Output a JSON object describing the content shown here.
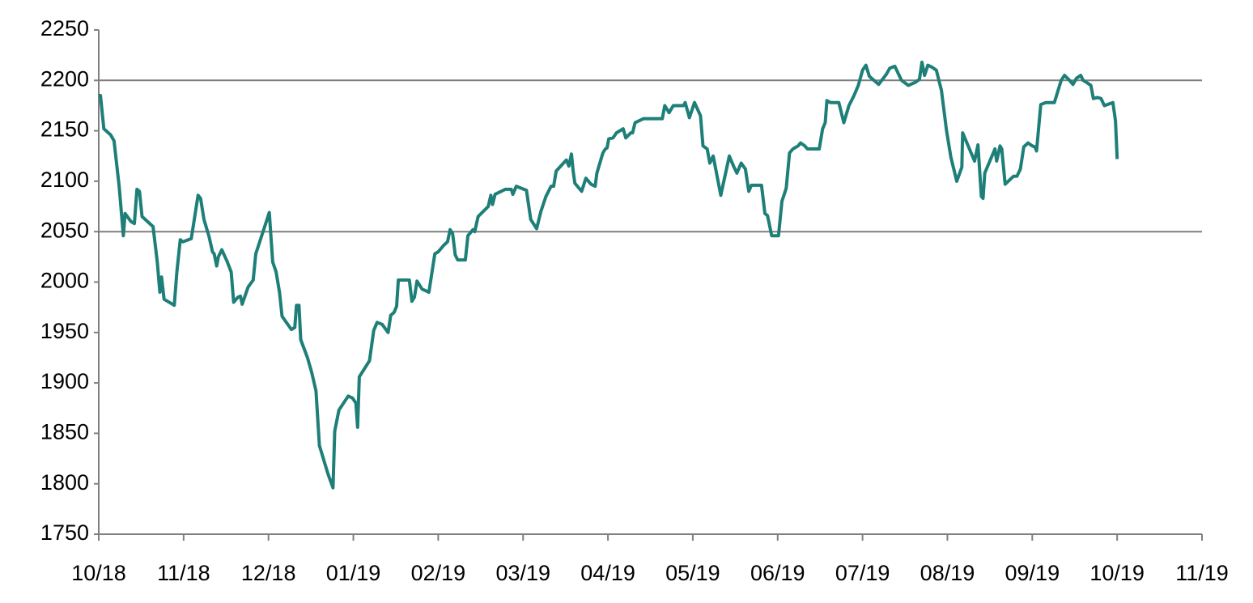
{
  "chart_data": {
    "type": "line",
    "x": [
      0,
      0.02,
      0.06,
      0.14,
      0.18,
      0.24,
      0.29,
      0.31,
      0.38,
      0.42,
      0.45,
      0.48,
      0.51,
      0.64,
      0.69,
      0.72,
      0.74,
      0.77,
      0.89,
      0.92,
      0.96,
      0.99,
      1.09,
      1.17,
      1.2,
      1.24,
      1.3,
      1.34,
      1.36,
      1.39,
      1.41,
      1.45,
      1.51,
      1.56,
      1.59,
      1.64,
      1.67,
      1.69,
      1.76,
      1.82,
      1.85,
      2.01,
      2.05,
      2.09,
      2.13,
      2.16,
      2.27,
      2.31,
      2.33,
      2.36,
      2.38,
      2.46,
      2.51,
      2.56,
      2.6,
      2.7,
      2.76,
      2.78,
      2.83,
      2.94,
      2.99,
      3.03,
      3.05,
      3.07,
      3.19,
      3.24,
      3.28,
      3.34,
      3.41,
      3.44,
      3.48,
      3.51,
      3.53,
      3.66,
      3.69,
      3.72,
      3.75,
      3.81,
      3.89,
      3.96,
      4.0,
      4.06,
      4.11,
      4.14,
      4.17,
      4.2,
      4.23,
      4.32,
      4.35,
      4.41,
      4.43,
      4.47,
      4.59,
      4.62,
      4.64,
      4.67,
      4.79,
      4.86,
      4.88,
      4.92,
      5.04,
      5.09,
      5.16,
      5.21,
      5.27,
      5.33,
      5.36,
      5.39,
      5.51,
      5.54,
      5.57,
      5.59,
      5.61,
      5.69,
      5.74,
      5.8,
      5.85,
      5.87,
      5.94,
      5.97,
      5.99,
      6.01,
      6.06,
      6.1,
      6.18,
      6.21,
      6.27,
      6.29,
      6.32,
      6.42,
      6.64,
      6.67,
      6.72,
      6.77,
      6.89,
      6.91,
      6.96,
      7.02,
      7.09,
      7.12,
      7.17,
      7.2,
      7.24,
      7.33,
      7.43,
      7.48,
      7.52,
      7.57,
      7.62,
      7.66,
      7.69,
      7.81,
      7.85,
      7.88,
      7.93,
      8.01,
      8.05,
      8.1,
      8.14,
      8.18,
      8.24,
      8.27,
      8.32,
      8.35,
      8.4,
      8.49,
      8.53,
      8.56,
      8.58,
      8.62,
      8.72,
      8.78,
      8.84,
      8.9,
      8.95,
      9.0,
      9.04,
      9.08,
      9.19,
      9.28,
      9.32,
      9.38,
      9.46,
      9.54,
      9.62,
      9.67,
      9.7,
      9.73,
      9.77,
      9.82,
      9.87,
      9.93,
      9.99,
      10.04,
      10.11,
      10.17,
      10.18,
      10.28,
      10.32,
      10.36,
      10.4,
      10.42,
      10.44,
      10.56,
      10.58,
      10.62,
      10.64,
      10.68,
      10.78,
      10.82,
      10.86,
      10.9,
      10.95,
      11.0,
      11.03,
      11.05,
      11.1,
      11.16,
      11.26,
      11.34,
      11.38,
      11.44,
      11.48,
      11.52,
      11.57,
      11.6,
      11.64,
      11.69,
      11.72,
      11.77,
      11.81,
      11.85,
      11.95,
      11.98,
      12.0
    ],
    "series": [
      {
        "color": "#1e7f78",
        "values": [
          2185,
          2185,
          2152,
          2146,
          2140,
          2095,
          2046,
          2068,
          2060,
          2058,
          2092,
          2090,
          2065,
          2055,
          2020,
          1990,
          2005,
          1983,
          1977,
          2010,
          2042,
          2040,
          2043,
          2086,
          2083,
          2062,
          2045,
          2030,
          2028,
          2016,
          2025,
          2032,
          2021,
          2010,
          1980,
          1985,
          1986,
          1978,
          1995,
          2002,
          2028,
          2069,
          2020,
          2010,
          1990,
          1966,
          1953,
          1955,
          1977,
          1977,
          1943,
          1925,
          1910,
          1892,
          1838,
          1810,
          1796,
          1852,
          1873,
          1887,
          1885,
          1880,
          1856,
          1906,
          1922,
          1952,
          1960,
          1958,
          1950,
          1967,
          1970,
          1976,
          2002,
          2002,
          1981,
          1985,
          2001,
          1993,
          1990,
          2028,
          2030,
          2036,
          2040,
          2052,
          2048,
          2027,
          2022,
          2022,
          2046,
          2052,
          2050,
          2065,
          2075,
          2086,
          2077,
          2087,
          2092,
          2092,
          2087,
          2095,
          2091,
          2062,
          2053,
          2070,
          2085,
          2095,
          2095,
          2110,
          2121,
          2115,
          2127,
          2110,
          2098,
          2090,
          2103,
          2097,
          2095,
          2108,
          2128,
          2132,
          2133,
          2142,
          2143,
          2148,
          2152,
          2143,
          2148,
          2148,
          2158,
          2162,
          2162,
          2175,
          2168,
          2175,
          2175,
          2178,
          2163,
          2178,
          2165,
          2135,
          2132,
          2118,
          2125,
          2086,
          2125,
          2115,
          2108,
          2118,
          2112,
          2090,
          2096,
          2096,
          2068,
          2066,
          2046,
          2046,
          2080,
          2093,
          2128,
          2132,
          2135,
          2138,
          2135,
          2132,
          2132,
          2132,
          2152,
          2158,
          2180,
          2178,
          2178,
          2158,
          2175,
          2185,
          2195,
          2210,
          2215,
          2204,
          2196,
          2206,
          2212,
          2214,
          2200,
          2195,
          2198,
          2201,
          2218,
          2205,
          2215,
          2213,
          2210,
          2190,
          2150,
          2124,
          2100,
          2114,
          2148,
          2128,
          2120,
          2136,
          2085,
          2083,
          2108,
          2132,
          2120,
          2135,
          2132,
          2097,
          2105,
          2105,
          2112,
          2134,
          2138,
          2135,
          2134,
          2130,
          2176,
          2178,
          2178,
          2200,
          2205,
          2200,
          2196,
          2202,
          2205,
          2200,
          2198,
          2195,
          2182,
          2183,
          2182,
          2175,
          2178,
          2160,
          2122
        ]
      }
    ],
    "xlim": [
      0,
      13
    ],
    "xticks": [
      {
        "value": 0,
        "label": "10/18"
      },
      {
        "value": 1,
        "label": "11/18"
      },
      {
        "value": 2,
        "label": "12/18"
      },
      {
        "value": 3,
        "label": "01/19"
      },
      {
        "value": 4,
        "label": "02/19"
      },
      {
        "value": 5,
        "label": "03/19"
      },
      {
        "value": 6,
        "label": "04/19"
      },
      {
        "value": 7,
        "label": "05/19"
      },
      {
        "value": 8,
        "label": "06/19"
      },
      {
        "value": 9,
        "label": "07/19"
      },
      {
        "value": 10,
        "label": "08/19"
      },
      {
        "value": 11,
        "label": "09/19"
      },
      {
        "value": 12,
        "label": "10/19"
      },
      {
        "value": 13,
        "label": "11/19"
      }
    ],
    "ylim": [
      1750,
      2250
    ],
    "yticks": [
      1750,
      1800,
      1850,
      1900,
      1950,
      2000,
      2050,
      2100,
      2150,
      2200,
      2250
    ],
    "reference_lines": [
      2050,
      2200
    ]
  }
}
